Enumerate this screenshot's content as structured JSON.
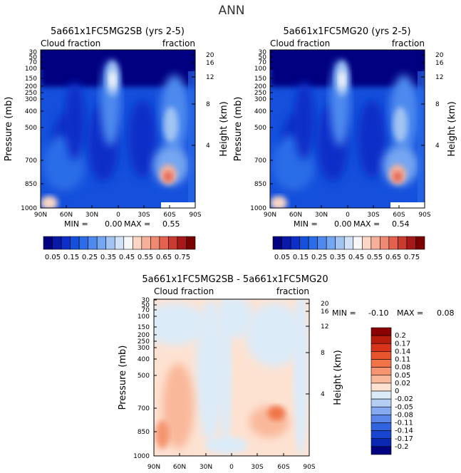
{
  "page_title": "ANN",
  "colors": {
    "deep_navy": "#000080",
    "mid_blue": "#1450dc",
    "light_blue": "#8cb4f0",
    "pale": "#f7f7f7",
    "salmon": "#f0a080",
    "dark_red": "#8b0000"
  },
  "chart_data": [
    {
      "id": "top-left",
      "type": "heatmap",
      "title": "5a661x1FC5MG2SB (yrs 2-5)",
      "subtitle_left": "Cloud fraction",
      "subtitle_right": "fraction",
      "xlabel": "",
      "ylabel": "Pressure (mb)",
      "ylabel_right": "Height (km)",
      "xticks": [
        "90N",
        "60N",
        "30N",
        "0",
        "30S",
        "60S",
        "90S"
      ],
      "xtick_values": [
        90,
        60,
        30,
        0,
        -30,
        -60,
        -90
      ],
      "xlim": [
        90,
        -90
      ],
      "pressure_ticks": [
        "30",
        "50",
        "70",
        "100",
        "150",
        "200",
        "250",
        "300",
        "400",
        "500",
        "700",
        "850",
        "1000"
      ],
      "pressure_values": [
        30,
        50,
        70,
        100,
        150,
        200,
        250,
        300,
        400,
        500,
        700,
        850,
        1000
      ],
      "ylim": [
        30,
        1000
      ],
      "height_ticks": [
        "20",
        "16",
        "12",
        "8",
        "4"
      ],
      "height_values": [
        20,
        16,
        12,
        8,
        4
      ],
      "min_label": "MIN =",
      "min_value": "0.00",
      "max_label": "MAX =",
      "max_value": "0.55",
      "colorbar_labels": [
        "0.05",
        "0.15",
        "0.25",
        "0.35",
        "0.45",
        "0.55",
        "0.65",
        "0.75"
      ],
      "colorbar_levels": [
        0,
        0.05,
        0.1,
        0.15,
        0.2,
        0.25,
        0.3,
        0.35,
        0.4,
        0.45,
        0.5,
        0.55,
        0.6,
        0.65,
        0.7,
        0.75,
        0.8
      ],
      "colorbar_colors": [
        "#000080",
        "#0a1aa8",
        "#0b2fc8",
        "#1450dc",
        "#2b6de8",
        "#4e8aee",
        "#75a6f1",
        "#a3c4f3",
        "#d1e2f7",
        "#f7f7f7",
        "#fbd6c4",
        "#f6b09a",
        "#ee8a72",
        "#e2614f",
        "#c93a2f",
        "#a81818",
        "#7a0000"
      ]
    },
    {
      "id": "top-right",
      "type": "heatmap",
      "title": "5a661x1FC5MG20 (yrs 2-5)",
      "subtitle_left": "Cloud fraction",
      "subtitle_right": "fraction",
      "xlabel": "",
      "ylabel": "Pressure (mb)",
      "ylabel_right": "Height (km)",
      "xticks": [
        "90N",
        "60N",
        "30N",
        "0",
        "30S",
        "60S",
        "90S"
      ],
      "xtick_values": [
        90,
        60,
        30,
        0,
        -30,
        -60,
        -90
      ],
      "xlim": [
        90,
        -90
      ],
      "pressure_ticks": [
        "30",
        "50",
        "70",
        "100",
        "150",
        "200",
        "250",
        "300",
        "400",
        "500",
        "700",
        "850",
        "1000"
      ],
      "pressure_values": [
        30,
        50,
        70,
        100,
        150,
        200,
        250,
        300,
        400,
        500,
        700,
        850,
        1000
      ],
      "ylim": [
        30,
        1000
      ],
      "height_ticks": [
        "20",
        "16",
        "12",
        "8",
        "4"
      ],
      "height_values": [
        20,
        16,
        12,
        8,
        4
      ],
      "min_label": "MIN =",
      "min_value": "0.00",
      "max_label": "MAX =",
      "max_value": "0.54",
      "colorbar_labels": [
        "0.05",
        "0.15",
        "0.25",
        "0.35",
        "0.45",
        "0.55",
        "0.65",
        "0.75"
      ],
      "colorbar_levels": [
        0,
        0.05,
        0.1,
        0.15,
        0.2,
        0.25,
        0.3,
        0.35,
        0.4,
        0.45,
        0.5,
        0.55,
        0.6,
        0.65,
        0.7,
        0.75,
        0.8
      ],
      "colorbar_colors": [
        "#000080",
        "#0a1aa8",
        "#0b2fc8",
        "#1450dc",
        "#2b6de8",
        "#4e8aee",
        "#75a6f1",
        "#a3c4f3",
        "#d1e2f7",
        "#f7f7f7",
        "#fbd6c4",
        "#f6b09a",
        "#ee8a72",
        "#e2614f",
        "#c93a2f",
        "#a81818",
        "#7a0000"
      ]
    },
    {
      "id": "bottom-diff",
      "type": "heatmap",
      "title": "5a661x1FC5MG2SB - 5a661x1FC5MG20",
      "subtitle_left": "Cloud fraction",
      "subtitle_right": "fraction",
      "xlabel": "",
      "ylabel": "Pressure (mb)",
      "ylabel_right": "Height (km)",
      "xticks": [
        "90N",
        "60N",
        "30N",
        "0",
        "30S",
        "60S",
        "90S"
      ],
      "xtick_values": [
        90,
        60,
        30,
        0,
        -30,
        -60,
        -90
      ],
      "xlim": [
        90,
        -90
      ],
      "pressure_ticks": [
        "30",
        "50",
        "70",
        "100",
        "150",
        "200",
        "250",
        "300",
        "400",
        "500",
        "700",
        "850",
        "1000"
      ],
      "pressure_values": [
        30,
        50,
        70,
        100,
        150,
        200,
        250,
        300,
        400,
        500,
        700,
        850,
        1000
      ],
      "ylim": [
        30,
        1000
      ],
      "height_ticks": [
        "20",
        "16",
        "12",
        "8",
        "4"
      ],
      "height_values": [
        20,
        16,
        12,
        8,
        4
      ],
      "min_label": "MIN =",
      "min_value": "-0.10",
      "max_label": "MAX =",
      "max_value": "0.08",
      "colorbar_labels": [
        "0.2",
        "0.17",
        "0.14",
        "0.11",
        "0.08",
        "0.05",
        "0.02",
        "0",
        "-0.02",
        "-0.05",
        "-0.08",
        "-0.11",
        "-0.14",
        "-0.17",
        "-0.2"
      ],
      "colorbar_levels": [
        0.2,
        0.17,
        0.14,
        0.11,
        0.08,
        0.05,
        0.02,
        0,
        -0.02,
        -0.05,
        -0.08,
        -0.11,
        -0.14,
        -0.17,
        -0.2
      ],
      "colorbar_colors": [
        "#8b0000",
        "#b81c0c",
        "#d8341a",
        "#e8542e",
        "#f07448",
        "#f59470",
        "#f9b89a",
        "#fde2d2",
        "#dcebf8",
        "#b4cdf2",
        "#86aaf0",
        "#5a86ea",
        "#3264e0",
        "#1844d0",
        "#0a28b4",
        "#000080"
      ]
    }
  ]
}
